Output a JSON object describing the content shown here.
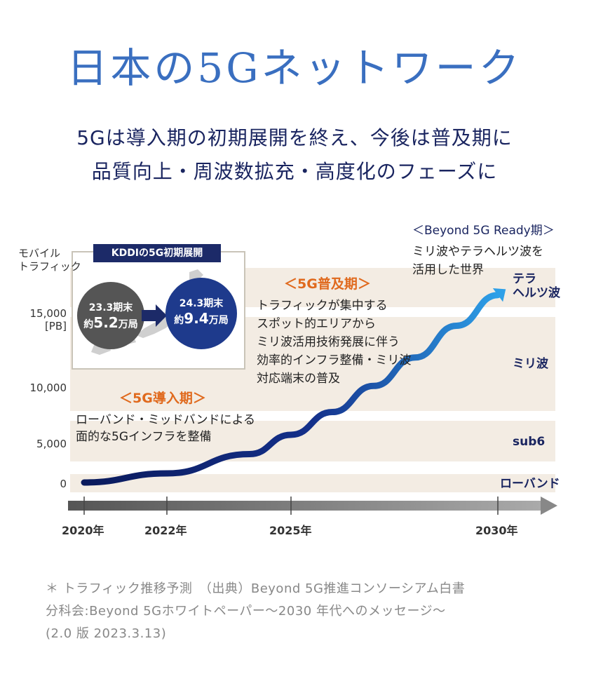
{
  "title": "日本の5Gネットワーク",
  "subtitle_line1": "5Gは導入期の初期展開を終え、今後は普及期に",
  "subtitle_line2": "品質向上・周波数拡充・高度化のフェーズに",
  "chart_data": {
    "type": "area",
    "ylabel_line1": "モバイル",
    "ylabel_line2": "トラフィック",
    "y_unit_tick": "15,000\n[PB]",
    "yticks": [
      "0",
      "5,000",
      "10,000",
      "15,000"
    ],
    "xticks": [
      "2020年",
      "2022年",
      "2025年",
      "2030年"
    ],
    "x_axis_years": [
      2020,
      2022,
      2025,
      2030
    ],
    "series": [
      {
        "x": [
          2020,
          2022,
          2024,
          2025,
          2026,
          2027,
          2028,
          2029,
          2030
        ],
        "values": [
          0,
          800,
          2500,
          4200,
          6200,
          8500,
          11000,
          13800,
          16500
        ]
      }
    ],
    "bands": [
      {
        "label": "ローバンド",
        "color": "#f3ece3"
      },
      {
        "label": "sub6",
        "color": "#f3ece3"
      },
      {
        "label": "ミリ波",
        "color": "#f3ece3"
      },
      {
        "label_line1": "テラ",
        "label_line2": "ヘルツ波",
        "color": "#f3ece3"
      }
    ],
    "curve_color_start": "#0a1a5c",
    "curve_color_end": "#2ea0e8",
    "axis_arrow_color": "#888888"
  },
  "kddi": {
    "heading": "KDDIの5G初期展開",
    "left_label": "23.3期末",
    "left_prefix": "約",
    "left_value": "5.2",
    "left_unit": "万局",
    "right_label": "24.3期末",
    "right_prefix": "約",
    "right_value": "9.4",
    "right_unit": "万局"
  },
  "phases": {
    "intro_title": "＜5G導入期＞",
    "intro_text_1": "ローバンド・ミッドバンドによる",
    "intro_text_2": "面的な5Gインフラを整備",
    "spread_title": "＜5G普及期＞",
    "spread_text_1": "トラフィックが集中する",
    "spread_text_2": "スポット的エリアから",
    "spread_text_3": "ミリ波活用技術発展に伴う",
    "spread_text_4": "効率的インフラ整備・ミリ波",
    "spread_text_5": "対応端末の普及",
    "beyond_title": "＜Beyond 5G Ready期＞",
    "beyond_text_1": "ミリ波やテラヘルツ波を",
    "beyond_text_2": "活用した世界"
  },
  "footnote_1": "＊ トラフィック推移予測　（出典）Beyond 5G推進コンソーシアム白書",
  "footnote_2": "分科会:Beyond 5Gホワイトペーパー〜2030 年代へのメッセージ〜",
  "footnote_3": "(2.0 版 2023.3.13)"
}
